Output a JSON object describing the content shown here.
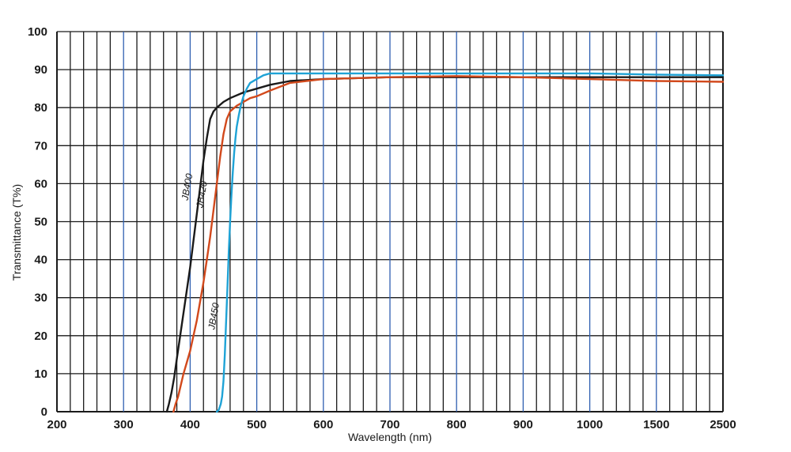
{
  "chart_data": {
    "type": "line",
    "title": "",
    "xlabel": "Wavelength (nm)",
    "ylabel": "Transmittance (T%)",
    "ylim": [
      0,
      100
    ],
    "y_ticks": [
      "0",
      "10",
      "20",
      "30",
      "40",
      "50",
      "60",
      "70",
      "80",
      "90",
      "100"
    ],
    "x_ticks": [
      "200",
      "300",
      "400",
      "500",
      "600",
      "700",
      "800",
      "900",
      "1000",
      "1500",
      "2500"
    ],
    "x_scale": "segmented",
    "grid": true,
    "legend": "none",
    "colors": {
      "grid_black": "#1a1a1a",
      "grid_blue": "#2f5fb0",
      "JB400": "#1a1a1a",
      "JB420": "#d2491c",
      "JB450": "#1fa3d6"
    },
    "series": [
      {
        "name": "JB400",
        "x": [
          365,
          368,
          372,
          376,
          380,
          385,
          390,
          395,
          400,
          405,
          410,
          415,
          420,
          425,
          430,
          435,
          440,
          450,
          460,
          480,
          500,
          520,
          550,
          600,
          700,
          800,
          900,
          1000,
          1500,
          2500
        ],
        "y": [
          0,
          2,
          5,
          9,
          14,
          20,
          26,
          32,
          38,
          45,
          52,
          59,
          66,
          72,
          77,
          79,
          80,
          81.5,
          82.5,
          84,
          85,
          86,
          87,
          87.5,
          88,
          88,
          88,
          88,
          88,
          88
        ]
      },
      {
        "name": "JB420",
        "x": [
          375,
          378,
          382,
          386,
          390,
          395,
          400,
          405,
          410,
          415,
          420,
          425,
          430,
          435,
          440,
          445,
          450,
          455,
          460,
          470,
          480,
          490,
          500,
          520,
          550,
          600,
          700,
          800,
          900,
          1000,
          1500,
          2500
        ],
        "y": [
          0,
          2,
          4,
          7,
          10,
          13,
          16,
          20,
          24,
          29,
          34,
          40,
          46,
          53,
          60,
          67,
          73,
          77,
          79,
          80.5,
          81.5,
          82.5,
          83,
          84.5,
          86.5,
          87.5,
          88,
          88.3,
          88,
          87.5,
          87,
          86.8
        ]
      },
      {
        "name": "JB450",
        "x": [
          440,
          443,
          446,
          448,
          450,
          452,
          454,
          456,
          458,
          460,
          462,
          464,
          466,
          468,
          470,
          473,
          476,
          480,
          485,
          490,
          500,
          510,
          520,
          530,
          550,
          600,
          700,
          800,
          900,
          1000,
          1500,
          2500
        ],
        "y": [
          0,
          0.5,
          2,
          4,
          8,
          15,
          24,
          33,
          42,
          50,
          57,
          63,
          68,
          72,
          75,
          78,
          80.5,
          83,
          85,
          86.5,
          87.5,
          88.5,
          89,
          89,
          89,
          89,
          89,
          89,
          89,
          89,
          88.7,
          88.5
        ]
      }
    ],
    "annotations": [
      {
        "text": "JB400",
        "series": "JB400",
        "x": 400,
        "y": 59
      },
      {
        "text": "JB420",
        "series": "JB420",
        "x": 422,
        "y": 57
      },
      {
        "text": "JB450",
        "series": "JB450",
        "x": 440,
        "y": 25
      }
    ]
  }
}
